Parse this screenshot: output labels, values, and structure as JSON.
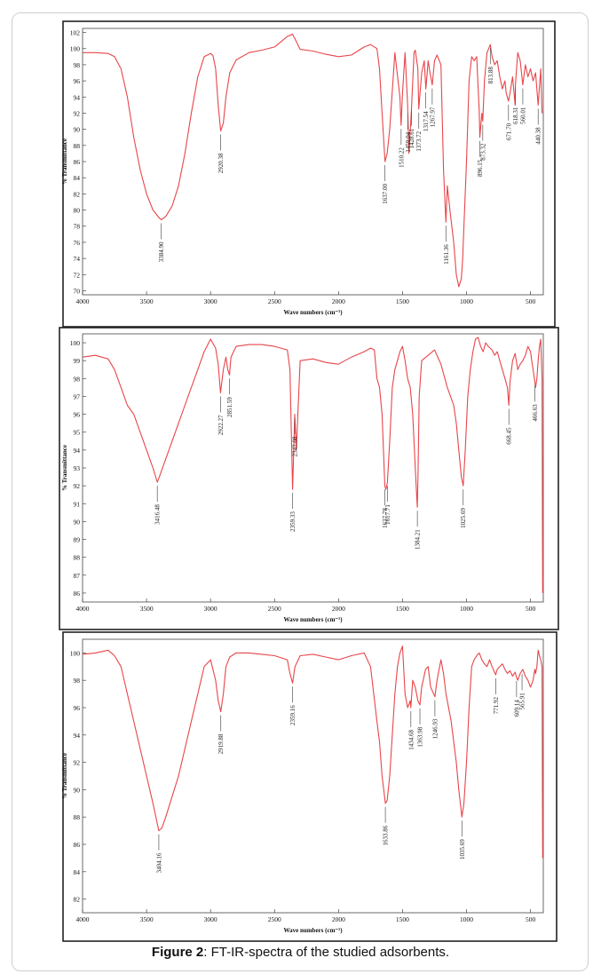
{
  "figure": {
    "caption_label": "Figure 2",
    "caption_text": ": FT-IR-spectra of the studied adsorbents."
  },
  "colors": {
    "spectrum": "#e8454a",
    "frame": "#222222",
    "leader": "#555555"
  },
  "chart_data": [
    {
      "type": "line",
      "xlabel": "Wave numbers (cm⁻¹)",
      "ylabel": "% Transmittance",
      "xlim": [
        4000,
        400
      ],
      "ylim": [
        69.5,
        102.5
      ],
      "x_ticks": [
        "4000",
        "3500",
        "3000",
        "2500",
        "2000",
        "1500",
        "1000",
        "500"
      ],
      "x_tick_values": [
        4000,
        3500,
        3000,
        2500,
        2000,
        1500,
        1000,
        500
      ],
      "y_ticks": [
        "70",
        "72",
        "74",
        "76",
        "78",
        "80",
        "82",
        "84",
        "86",
        "88",
        "90",
        "92",
        "94",
        "96",
        "98",
        "100",
        "102"
      ],
      "y_tick_values": [
        70,
        72,
        74,
        76,
        78,
        80,
        82,
        84,
        86,
        88,
        90,
        92,
        94,
        96,
        98,
        100,
        102
      ],
      "series": [
        {
          "x": [
            4000,
            3900,
            3800,
            3750,
            3700,
            3650,
            3600,
            3550,
            3500,
            3450,
            3400,
            3385,
            3350,
            3300,
            3250,
            3200,
            3150,
            3100,
            3050,
            3000,
            2980,
            2960,
            2940,
            2921,
            2900,
            2880,
            2850,
            2800,
            2700,
            2600,
            2500,
            2400,
            2360,
            2340,
            2300,
            2200,
            2100,
            2000,
            1900,
            1800,
            1750,
            1700,
            1680,
            1660,
            1637,
            1620,
            1600,
            1560,
            1520,
            1511,
            1500,
            1480,
            1460,
            1450,
            1430,
            1410,
            1400,
            1380,
            1373,
            1350,
            1330,
            1318,
            1300,
            1285,
            1268,
            1250,
            1230,
            1200,
            1180,
            1161,
            1150,
            1130,
            1100,
            1080,
            1060,
            1040,
            1030,
            1020,
            1000,
            980,
            960,
            940,
            920,
            900,
            896,
            880,
            873,
            860,
            840,
            814,
            800,
            780,
            760,
            740,
            720,
            700,
            690,
            672,
            660,
            640,
            620,
            618,
            600,
            580,
            560,
            540,
            520,
            500,
            480,
            460,
            440,
            420,
            410
          ],
          "y": [
            99.5,
            99.5,
            99.4,
            99.0,
            97.5,
            94.0,
            89.0,
            85.0,
            82.0,
            80.0,
            79.0,
            78.8,
            79.2,
            80.5,
            83.0,
            87.0,
            92.0,
            96.5,
            99.0,
            99.4,
            99.1,
            97.5,
            93.0,
            89.8,
            90.8,
            94.0,
            97.0,
            98.6,
            99.5,
            99.8,
            100.2,
            101.5,
            101.8,
            101.2,
            99.9,
            99.7,
            99.3,
            99.0,
            99.2,
            100.2,
            100.5,
            100.0,
            97.5,
            92.0,
            86.0,
            87.0,
            90.0,
            99.5,
            94.0,
            90.5,
            94.5,
            99.5,
            93.0,
            87.0,
            92.5,
            99.5,
            99.8,
            97.5,
            92.5,
            97.0,
            98.5,
            95.0,
            98.5,
            97.0,
            95.5,
            98.5,
            99.2,
            98.0,
            85.0,
            78.5,
            83.0,
            80.0,
            76.0,
            72.0,
            70.5,
            71.5,
            74.0,
            78.0,
            86.0,
            96.0,
            99.0,
            98.5,
            99.0,
            92.0,
            89.0,
            92.0,
            91.0,
            96.0,
            99.5,
            100.5,
            99.0,
            98.0,
            98.5,
            96.5,
            95.0,
            96.0,
            94.5,
            93.5,
            94.5,
            96.5,
            93.0,
            95.5,
            99.5,
            98.5,
            95.5,
            98.0,
            96.5,
            97.5,
            96.0,
            97.0,
            93.0,
            97.5,
            92.0
          ]
        }
      ],
      "annotations": [
        {
          "label": "3384.90",
          "x": 3385
        },
        {
          "label": "2920.38",
          "x": 2921
        },
        {
          "label": "1637.00",
          "x": 1637
        },
        {
          "label": "1510.22",
          "x": 1511
        },
        {
          "label": "1459.04",
          "x": 1459
        },
        {
          "label": "1428.61",
          "x": 1429
        },
        {
          "label": "1373.72",
          "x": 1373
        },
        {
          "label": "1317.54",
          "x": 1318
        },
        {
          "label": "1267.97",
          "x": 1268
        },
        {
          "label": "1161.36",
          "x": 1161
        },
        {
          "label": "896.15",
          "x": 896
        },
        {
          "label": "873.32",
          "x": 873
        },
        {
          "label": "813.88",
          "x": 814
        },
        {
          "label": "671.70",
          "x": 672
        },
        {
          "label": "618.31",
          "x": 618
        },
        {
          "label": "560.01",
          "x": 560
        },
        {
          "label": "440.38",
          "x": 440
        }
      ]
    },
    {
      "type": "line",
      "xlabel": "Wave numbers (cm⁻¹)",
      "ylabel": "% Transmittance",
      "xlim": [
        4000,
        400
      ],
      "ylim": [
        85.5,
        100.5
      ],
      "x_ticks": [
        "4000",
        "3500",
        "3000",
        "2500",
        "2000",
        "1500",
        "1000",
        "500"
      ],
      "x_tick_values": [
        4000,
        3500,
        3000,
        2500,
        2000,
        1500,
        1000,
        500
      ],
      "y_ticks": [
        "86",
        "87",
        "88",
        "89",
        "90",
        "91",
        "92",
        "93",
        "94",
        "95",
        "96",
        "97",
        "98",
        "99",
        "100"
      ],
      "y_tick_values": [
        86,
        87,
        88,
        89,
        90,
        91,
        92,
        93,
        94,
        95,
        96,
        97,
        98,
        99,
        100
      ],
      "series": [
        {
          "x": [
            4000,
            3900,
            3800,
            3750,
            3700,
            3650,
            3600,
            3550,
            3500,
            3450,
            3416,
            3400,
            3350,
            3300,
            3250,
            3200,
            3150,
            3100,
            3050,
            3000,
            2960,
            2940,
            2922,
            2900,
            2880,
            2865,
            2852,
            2840,
            2800,
            2700,
            2600,
            2500,
            2400,
            2380,
            2359,
            2350,
            2342,
            2330,
            2300,
            2200,
            2100,
            2000,
            1900,
            1800,
            1750,
            1720,
            1700,
            1680,
            1660,
            1638,
            1630,
            1618,
            1600,
            1580,
            1560,
            1540,
            1520,
            1500,
            1480,
            1460,
            1440,
            1420,
            1400,
            1390,
            1384,
            1378,
            1370,
            1350,
            1300,
            1250,
            1200,
            1150,
            1100,
            1080,
            1060,
            1040,
            1026,
            1010,
            990,
            970,
            950,
            930,
            910,
            890,
            870,
            850,
            830,
            800,
            780,
            760,
            740,
            720,
            700,
            680,
            669,
            660,
            640,
            620,
            600,
            580,
            560,
            540,
            520,
            500,
            490,
            480,
            466,
            460,
            450,
            440,
            430,
            420,
            410,
            405
          ],
          "y": [
            99.2,
            99.3,
            99.1,
            98.5,
            97.5,
            96.5,
            96.0,
            95.0,
            94.0,
            93.0,
            92.2,
            92.5,
            93.5,
            94.5,
            95.5,
            96.5,
            97.5,
            98.5,
            99.5,
            100.2,
            99.7,
            98.8,
            97.2,
            98.5,
            99.2,
            98.5,
            98.2,
            99.2,
            99.8,
            99.9,
            99.9,
            99.8,
            99.6,
            98.5,
            91.8,
            94.0,
            96.0,
            94.0,
            99.0,
            99.1,
            98.9,
            98.8,
            99.2,
            99.5,
            99.7,
            99.6,
            98.0,
            97.5,
            96.0,
            92.0,
            91.8,
            92.2,
            94.5,
            97.5,
            98.5,
            99.0,
            99.5,
            99.8,
            99.0,
            98.0,
            97.5,
            96.0,
            93.0,
            91.5,
            90.8,
            93.0,
            97.0,
            99.0,
            99.3,
            99.6,
            98.8,
            97.5,
            96.5,
            95.5,
            94.0,
            92.5,
            92.0,
            94.0,
            97.0,
            98.5,
            99.5,
            100.2,
            100.3,
            99.8,
            99.5,
            100.0,
            99.8,
            99.6,
            99.3,
            99.5,
            99.0,
            98.5,
            98.0,
            97.5,
            96.5,
            97.8,
            99.0,
            99.4,
            98.5,
            98.8,
            99.0,
            99.3,
            99.8,
            99.5,
            99.0,
            98.5,
            97.8,
            97.5,
            98.0,
            99.0,
            99.8,
            100.2,
            98.0,
            86.0
          ]
        }
      ],
      "annotations": [
        {
          "label": "3416.48",
          "x": 3416
        },
        {
          "label": "2922.27",
          "x": 2922
        },
        {
          "label": "2851.59",
          "x": 2852
        },
        {
          "label": "2359.33",
          "x": 2359
        },
        {
          "label": "2342.08",
          "x": 2342
        },
        {
          "label": "1637.78",
          "x": 1638
        },
        {
          "label": "1617.71",
          "x": 1618
        },
        {
          "label": "1384.21",
          "x": 1384
        },
        {
          "label": "1025.69",
          "x": 1026
        },
        {
          "label": "668.45",
          "x": 669
        },
        {
          "label": "466.63",
          "x": 466
        }
      ]
    },
    {
      "type": "line",
      "xlabel": "Wave numbers (cm⁻¹)",
      "ylabel": "% Transmittance",
      "xlim": [
        4000,
        400
      ],
      "ylim": [
        81,
        101
      ],
      "x_ticks": [
        "4000",
        "3500",
        "3000",
        "2500",
        "2000",
        "1500",
        "1000",
        "500"
      ],
      "x_tick_values": [
        4000,
        3500,
        3000,
        2500,
        2000,
        1500,
        1000,
        500
      ],
      "y_ticks": [
        "82",
        "84",
        "86",
        "88",
        "90",
        "92",
        "94",
        "96",
        "98",
        "100"
      ],
      "y_tick_values": [
        82,
        84,
        86,
        88,
        90,
        92,
        94,
        96,
        98,
        100
      ],
      "series": [
        {
          "x": [
            4000,
            3900,
            3800,
            3750,
            3700,
            3650,
            3600,
            3550,
            3500,
            3450,
            3404,
            3380,
            3350,
            3300,
            3250,
            3200,
            3150,
            3100,
            3050,
            3000,
            2960,
            2940,
            2920,
            2900,
            2880,
            2850,
            2800,
            2700,
            2600,
            2500,
            2400,
            2380,
            2359,
            2340,
            2300,
            2200,
            2100,
            2000,
            1900,
            1800,
            1750,
            1700,
            1680,
            1660,
            1634,
            1620,
            1600,
            1580,
            1560,
            1540,
            1520,
            1500,
            1480,
            1460,
            1440,
            1435,
            1420,
            1400,
            1380,
            1364,
            1350,
            1320,
            1300,
            1280,
            1247,
            1230,
            1200,
            1180,
            1160,
            1140,
            1120,
            1100,
            1080,
            1060,
            1036,
            1020,
            1000,
            980,
            960,
            940,
            920,
            900,
            880,
            860,
            840,
            820,
            800,
            772,
            760,
            740,
            720,
            700,
            680,
            660,
            640,
            620,
            609,
            600,
            580,
            560,
            540,
            520,
            500,
            480,
            466,
            460,
            450,
            440,
            430,
            420,
            410,
            405
          ],
          "y": [
            99.9,
            100.0,
            100.2,
            99.8,
            99.0,
            97.0,
            95.0,
            93.0,
            91.0,
            89.0,
            87.0,
            87.2,
            88.0,
            89.5,
            91.0,
            93.0,
            95.0,
            97.0,
            99.0,
            99.5,
            98.0,
            96.5,
            95.7,
            97.0,
            99.0,
            99.7,
            100.0,
            100.0,
            99.9,
            99.8,
            99.5,
            98.5,
            97.8,
            99.0,
            99.8,
            99.9,
            99.7,
            99.5,
            99.8,
            100.0,
            99.0,
            95.0,
            93.5,
            91.0,
            89.0,
            89.2,
            91.0,
            94.0,
            97.0,
            99.0,
            100.0,
            100.5,
            97.0,
            96.0,
            96.5,
            96.0,
            98.0,
            97.5,
            96.5,
            96.2,
            97.5,
            98.8,
            99.0,
            97.5,
            96.8,
            98.0,
            99.5,
            98.5,
            97.0,
            96.0,
            95.0,
            93.5,
            92.0,
            90.0,
            88.0,
            89.0,
            92.0,
            96.0,
            99.0,
            99.5,
            99.8,
            100.0,
            99.5,
            99.2,
            99.0,
            99.5,
            99.0,
            98.4,
            98.8,
            99.0,
            99.2,
            98.8,
            98.5,
            98.7,
            98.3,
            98.6,
            98.2,
            98.0,
            98.5,
            98.8,
            98.3,
            98.0,
            97.5,
            98.0,
            98.8,
            98.5,
            99.0,
            100.2,
            99.8,
            99.5,
            99.0,
            85.0
          ]
        }
      ],
      "annotations": [
        {
          "label": "3404.16",
          "x": 3404
        },
        {
          "label": "2919.88",
          "x": 2920
        },
        {
          "label": "2359.16",
          "x": 2359
        },
        {
          "label": "1633.86",
          "x": 1634
        },
        {
          "label": "1434.68",
          "x": 1435
        },
        {
          "label": "1363.98",
          "x": 1364
        },
        {
          "label": "1246.93",
          "x": 1247
        },
        {
          "label": "1035.69",
          "x": 1036
        },
        {
          "label": "771.92",
          "x": 772
        },
        {
          "label": "609.14",
          "x": 609
        },
        {
          "label": "565.91",
          "x": 566
        }
      ]
    }
  ]
}
